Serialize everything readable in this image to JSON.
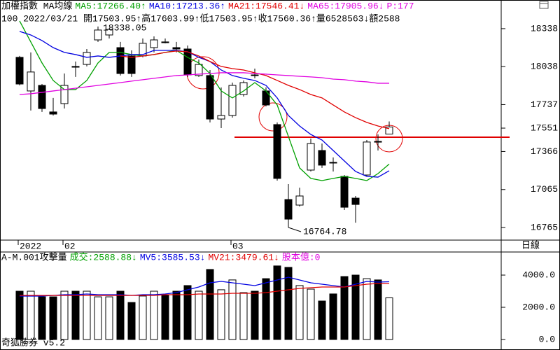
{
  "app": {
    "name": "奇狐勝券 v5.2",
    "period": "日線"
  },
  "chart_data": [
    {
      "type": "candlestick",
      "title": "加權指數 MA均線",
      "info": "100 2022/03/21 開17503.95↑高17603.99↑低17503.95↑收17560.36↑量6528563↓額2588",
      "more": "P:177",
      "open": [
        18111,
        17845,
        17889,
        17679,
        17745,
        18039,
        18055,
        18249,
        18288,
        18188,
        18122,
        18122,
        18188,
        18233,
        18188,
        18177,
        17967,
        17967,
        17623,
        17651,
        17817,
        17972,
        17845,
        17579,
        16986,
        16942,
        17219,
        17374,
        17280,
        17169,
        16997,
        17180,
        17446,
        17503.95
      ],
      "high": [
        18122,
        18150,
        17900,
        17790,
        17983,
        18078,
        18177,
        18355,
        18338.05,
        18233,
        18166,
        18260,
        18277,
        18260,
        18233,
        18205,
        18094,
        18011,
        17873,
        17911,
        17928,
        18022,
        17873,
        17596,
        17108,
        17080,
        17468,
        17429,
        17319,
        17180,
        17014,
        17457,
        17501,
        17603.99
      ],
      "low": [
        17889,
        17690,
        17679,
        17651,
        17706,
        17956,
        18039,
        18233,
        18260,
        17967,
        17956,
        18111,
        18150,
        18222,
        18150,
        17956,
        17956,
        17596,
        17551,
        17634,
        17801,
        17945,
        17723,
        17136,
        16764.78,
        16931,
        17208,
        17236,
        17208,
        16903,
        16803,
        17169,
        17374,
        17503.95
      ],
      "close": [
        17900,
        17995,
        17706,
        17662,
        17889,
        18033,
        18150,
        18327,
        18332,
        17983,
        17983,
        18222,
        18249,
        18227,
        18177,
        17972,
        18055,
        17623,
        17651,
        17889,
        17911,
        17967,
        17734,
        17153,
        16831,
        17014,
        17429,
        17258,
        17275,
        16925,
        16947,
        17441,
        17440,
        17560.36
      ],
      "series": [
        {
          "name": "MA5:17266.40↑",
          "color": "#00a000",
          "values": [
            18399,
            18233,
            18067,
            17928,
            17856,
            17856,
            17928,
            18067,
            18150,
            18150,
            18133,
            18122,
            18133,
            18150,
            18166,
            18111,
            18067,
            17983,
            17845,
            17790,
            17845,
            17911,
            17845,
            17734,
            17485,
            17236,
            17153,
            17136,
            17153,
            17169,
            17153,
            17136,
            17191,
            17266.4
          ]
        },
        {
          "name": "MA10:17213.36↑",
          "color": "#0000e0",
          "values": [
            18316,
            18288,
            18244,
            18188,
            18150,
            18133,
            18111,
            18122,
            18111,
            18122,
            18133,
            18133,
            18166,
            18166,
            18166,
            18155,
            18111,
            18078,
            18011,
            17967,
            17945,
            17928,
            17889,
            17790,
            17651,
            17568,
            17501,
            17457,
            17374,
            17291,
            17208,
            17169,
            17163,
            17213.36
          ]
        },
        {
          "name": "MA21:17546.41↓",
          "color": "#e00000",
          "values": [
            null,
            null,
            null,
            null,
            null,
            null,
            null,
            null,
            null,
            18122,
            18111,
            18122,
            18133,
            18150,
            18161,
            18155,
            18122,
            18078,
            18039,
            18022,
            18011,
            17989,
            17967,
            17928,
            17889,
            17856,
            17817,
            17790,
            17734,
            17679,
            17634,
            17596,
            17568,
            17546.41
          ]
        },
        {
          "name": "MA65:17905.96↓",
          "color": "#e000e0",
          "values": [
            17817,
            17823,
            17834,
            17845,
            17856,
            17867,
            17878,
            17889,
            17900,
            17911,
            17923,
            17934,
            17945,
            17956,
            17967,
            17972,
            17978,
            17983,
            17989,
            17989,
            17989,
            17983,
            17978,
            17972,
            17967,
            17961,
            17956,
            17950,
            17939,
            17934,
            17923,
            17917,
            17906,
            17905.96
          ]
        }
      ],
      "annotations": [
        "18338.05",
        "16764.78"
      ],
      "xticks": [
        {
          "value": 0,
          "label": "2022"
        },
        {
          "value": 4,
          "label": "02"
        },
        {
          "value": 19,
          "label": "03"
        }
      ],
      "ylim": [
        16665,
        18465
      ],
      "yticks": [
        18338,
        18038,
        17737,
        17551,
        17366,
        17065,
        16765
      ]
    },
    {
      "type": "volume",
      "title": "A-M.001攻擊量",
      "last_label": "成交:2588.88↓",
      "capital_label": "股本億:0",
      "values": [
        3000,
        3000,
        2650,
        2650,
        3000,
        3000,
        3000,
        2650,
        2650,
        3000,
        2300,
        2700,
        3000,
        2740,
        3000,
        3350,
        3000,
        4350,
        3090,
        3700,
        2910,
        3000,
        3780,
        4570,
        4480,
        3350,
        3130,
        2390,
        2830,
        3910,
        4000,
        3780,
        3700,
        2588.88
      ],
      "series": [
        {
          "name": "MV5:3585.53↓",
          "color": "#0000e0",
          "values": [
            2696,
            2696,
            2696,
            2739,
            2783,
            2783,
            2826,
            2783,
            2783,
            2783,
            2739,
            2783,
            2783,
            2826,
            2913,
            3087,
            3261,
            3522,
            3609,
            3522,
            3435,
            3348,
            3522,
            3696,
            3870,
            3696,
            3522,
            3435,
            3348,
            3261,
            3435,
            3609,
            3565,
            3585.53
          ]
        },
        {
          "name": "MV21:3479.61↓",
          "color": "#e00000",
          "values": [
            2739,
            2739,
            2739,
            2739,
            2739,
            2739,
            2739,
            2739,
            2739,
            2739,
            2739,
            2739,
            2739,
            2783,
            2783,
            2783,
            2826,
            2826,
            2826,
            2870,
            2870,
            2870,
            2913,
            3000,
            3087,
            3174,
            3218,
            3261,
            3261,
            3261,
            3348,
            3435,
            3478,
            3479.61
          ]
        }
      ],
      "ylim": [
        0,
        5435
      ],
      "yticks": [
        {
          "value": 4000,
          "label": "4000.0"
        },
        {
          "value": 2000,
          "label": "2000.0"
        },
        {
          "value": 0,
          "label": "0.0"
        }
      ]
    }
  ]
}
